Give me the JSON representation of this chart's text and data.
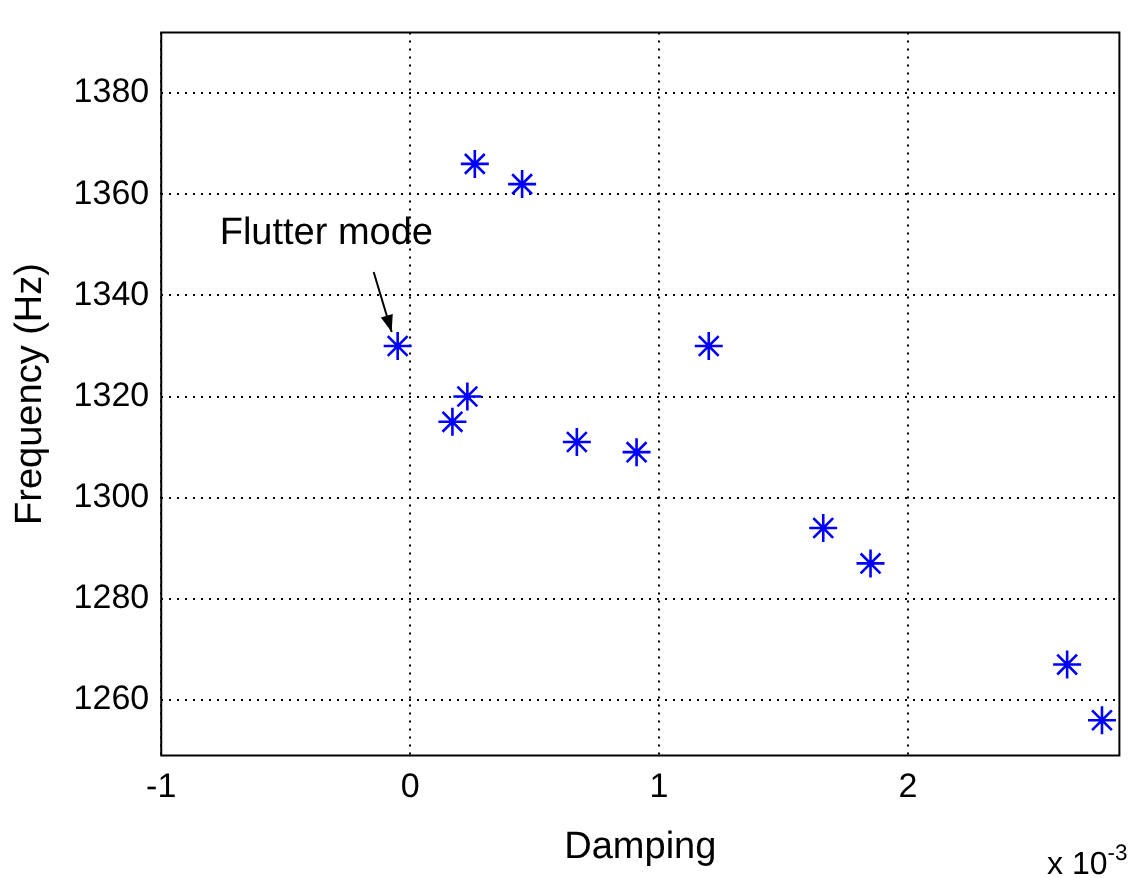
{
  "chart_data": {
    "type": "scatter",
    "xlabel": "Damping",
    "ylabel": "Frequency (Hz)",
    "x": [
      -0.05,
      0.26,
      0.45,
      1.2,
      0.23,
      0.17,
      0.67,
      0.91,
      1.66,
      1.85,
      2.64,
      2.78
    ],
    "series": [
      {
        "color": "#0000ff",
        "values": [
          1330,
          1366,
          1362,
          1330,
          1320,
          1315,
          1311,
          1309,
          1294,
          1287,
          1267,
          1256
        ]
      }
    ],
    "xlim": [
      -1,
      2.85
    ],
    "xticks": [
      -1,
      0,
      1,
      2
    ],
    "ylim": [
      1249,
      1392
    ],
    "yticks": [
      1260,
      1280,
      1300,
      1320,
      1340,
      1360,
      1380
    ],
    "grid": true,
    "legend": false,
    "marker": "cross",
    "annotations": [
      {
        "text": "Flutter mode",
        "x": -0.05,
        "y": 1330
      },
      "x 10$^{-3}$"
    ]
  }
}
